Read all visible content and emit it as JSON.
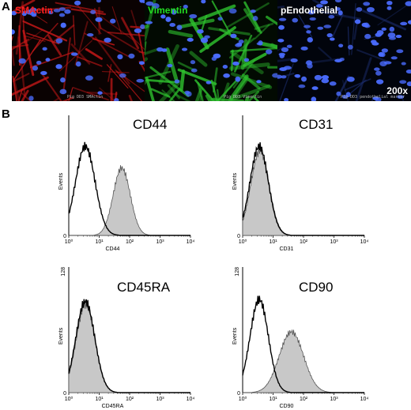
{
  "panel_a": {
    "letter": "A",
    "images": [
      {
        "label": "SMActin",
        "label_color": "#ff2020",
        "footer": "Pig DD3 SMActin",
        "bg": "#0a0202",
        "signal": "#c81818"
      },
      {
        "label": "Vimentin",
        "label_color": "#22dd22",
        "footer": "Pig DD3 Vimentin",
        "bg": "#020a02",
        "signal": "#2ec02e"
      },
      {
        "label": "pEndothelial",
        "label_color": "#ffffff",
        "footer": "Pig DD3 pendothelial marker",
        "bg": "#01040c",
        "signal": "#1a2a66"
      }
    ],
    "magnification": "200x",
    "nucleus_color": "#4a6cff"
  },
  "panel_b": {
    "letter": "B",
    "y_axis_label": "Events",
    "x_tick_labels": [
      "10⁰",
      "10¹",
      "10²",
      "10³",
      "10⁴"
    ],
    "y_top_label": "128",
    "y_zero_label": "0",
    "plots": [
      {
        "marker": "CD44",
        "x_label": "CD44",
        "show_y_top": false
      },
      {
        "marker": "CD31",
        "x_label": "CD31",
        "show_y_top": false
      },
      {
        "marker": "CD45RA",
        "x_label": "CD45RA",
        "show_y_top": true
      },
      {
        "marker": "CD90",
        "x_label": "CD90",
        "show_y_top": true
      }
    ]
  },
  "chart_data": [
    {
      "type": "area",
      "title": "CD44",
      "xlabel": "CD44",
      "ylabel": "Events",
      "xscale": "log",
      "xlim": [
        1,
        10000
      ],
      "ylim": [
        0,
        128
      ],
      "series": [
        {
          "name": "",
          "kind": "outline",
          "peak_x": 3.5,
          "peak_y": 95,
          "width_decades": 0.32
        },
        {
          "name": "",
          "kind": "filled",
          "peak_x": 55,
          "peak_y": 72,
          "width_decades": 0.28
        }
      ]
    },
    {
      "type": "area",
      "title": "CD31",
      "xlabel": "CD31",
      "ylabel": "Events",
      "xscale": "log",
      "xlim": [
        1,
        10000
      ],
      "ylim": [
        0,
        128
      ],
      "series": [
        {
          "name": "",
          "kind": "outline",
          "peak_x": 3.5,
          "peak_y": 95,
          "width_decades": 0.3
        },
        {
          "name": "",
          "kind": "filled",
          "peak_x": 3.7,
          "peak_y": 90,
          "width_decades": 0.3
        }
      ]
    },
    {
      "type": "area",
      "title": "CD45RA",
      "xlabel": "CD45RA",
      "ylabel": "Events",
      "xscale": "log",
      "xlim": [
        1,
        10000
      ],
      "ylim": [
        0,
        128
      ],
      "series": [
        {
          "name": "",
          "kind": "outline",
          "peak_x": 3.5,
          "peak_y": 93,
          "width_decades": 0.31
        },
        {
          "name": "",
          "kind": "filled",
          "peak_x": 3.6,
          "peak_y": 90,
          "width_decades": 0.31
        }
      ]
    },
    {
      "type": "area",
      "title": "CD90",
      "xlabel": "CD90",
      "ylabel": "Events",
      "xscale": "log",
      "xlim": [
        1,
        10000
      ],
      "ylim": [
        0,
        128
      ],
      "series": [
        {
          "name": "",
          "kind": "outline",
          "peak_x": 3.5,
          "peak_y": 95,
          "width_decades": 0.3
        },
        {
          "name": "",
          "kind": "filled",
          "peak_x": 40,
          "peak_y": 62,
          "width_decades": 0.4
        }
      ]
    }
  ]
}
